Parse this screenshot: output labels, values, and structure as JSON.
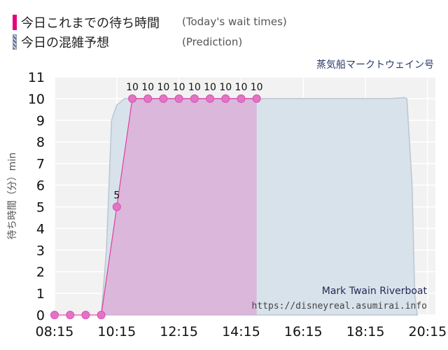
{
  "legend": {
    "today_jp": "今日これまでの待ち時間",
    "today_en": "(Today's wait times)",
    "prediction_jp": "今日の混雑予想",
    "prediction_en": "(Prediction)"
  },
  "attraction_name_jp": "蒸気船マークトウェイン号",
  "watermark": {
    "name": "Mark Twain Riverboat",
    "url": "https://disneyreal.asumirai.info"
  },
  "colors": {
    "today": "#e5007f",
    "today_fill": "#dba8d6",
    "prediction_fill": "#d6e0ea",
    "prediction_line": "#b9c6d3"
  },
  "chart_data": {
    "type": "area",
    "ylabel": "待ち時間（分）min",
    "ylim": [
      0,
      11
    ],
    "y_ticks": [
      0,
      1,
      2,
      3,
      4,
      5,
      6,
      7,
      8,
      9,
      10,
      11
    ],
    "xlim": [
      "08:15",
      "20:30"
    ],
    "x_ticks": [
      "08:15",
      "10:15",
      "12:15",
      "14:15",
      "16:15",
      "18:15",
      "20:15"
    ],
    "grid": true,
    "series": [
      {
        "name": "(Prediction)",
        "kind": "area",
        "points": [
          [
            "09:45",
            0
          ],
          [
            "09:55",
            3
          ],
          [
            "10:00",
            6
          ],
          [
            "10:05",
            9
          ],
          [
            "10:15",
            9.7
          ],
          [
            "10:30",
            10
          ],
          [
            "11:00",
            10
          ],
          [
            "12:00",
            10
          ],
          [
            "13:00",
            10
          ],
          [
            "14:00",
            10
          ],
          [
            "15:00",
            10
          ],
          [
            "16:00",
            10
          ],
          [
            "17:00",
            10
          ],
          [
            "18:00",
            10
          ],
          [
            "19:00",
            10
          ],
          [
            "19:30",
            10.05
          ],
          [
            "19:35",
            10
          ],
          [
            "19:45",
            6
          ],
          [
            "19:50",
            1
          ],
          [
            "19:55",
            0
          ]
        ]
      },
      {
        "name": "(Today's wait times)",
        "kind": "line-with-markers",
        "points": [
          [
            "08:15",
            0
          ],
          [
            "08:45",
            0
          ],
          [
            "09:15",
            0
          ],
          [
            "09:45",
            0
          ],
          [
            "10:15",
            5
          ],
          [
            "10:45",
            10
          ],
          [
            "11:15",
            10
          ],
          [
            "11:45",
            10
          ],
          [
            "12:15",
            10
          ],
          [
            "12:45",
            10
          ],
          [
            "13:15",
            10
          ],
          [
            "13:45",
            10
          ],
          [
            "14:15",
            10
          ],
          [
            "14:45",
            10
          ]
        ],
        "labels": [
          "",
          "",
          "",
          "",
          "5",
          "10",
          "10",
          "10",
          "10",
          "10",
          "10",
          "10",
          "10",
          "10"
        ]
      }
    ]
  }
}
